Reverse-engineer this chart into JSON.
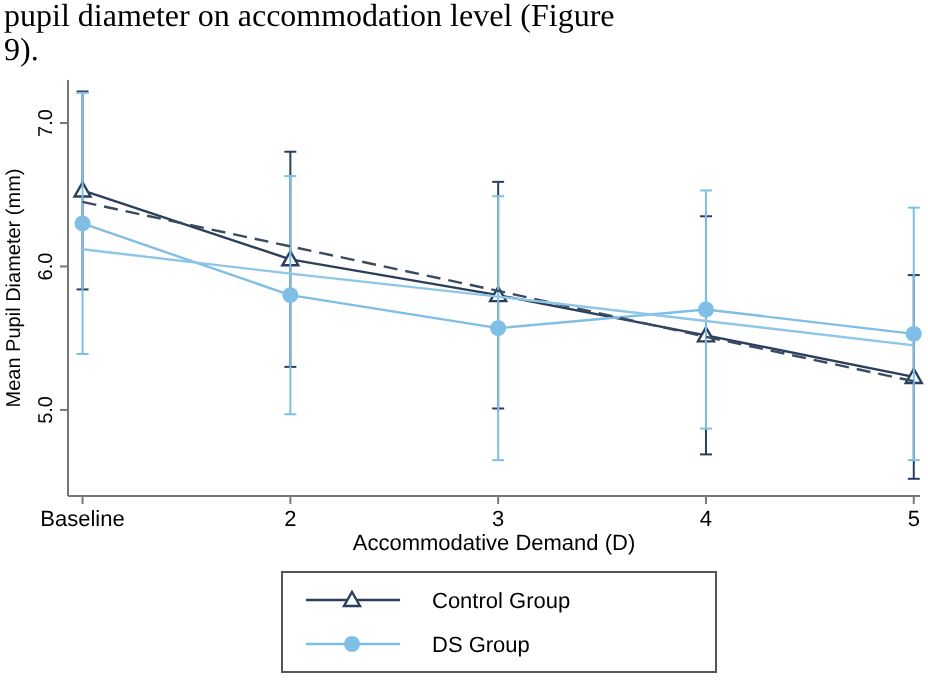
{
  "chart_data": {
    "type": "line",
    "xlabel": "Accommodative Demand (D)",
    "ylabel": "Mean Pupil Diameter (mm)",
    "annotations": [
      "pupil diameter on accommodation level (Figure",
      "9)."
    ],
    "x": [
      1,
      2,
      3,
      4,
      5
    ],
    "xlim": [
      0.93,
      5.03
    ],
    "xticks": [
      {
        "value": 1,
        "label": "Baseline"
      },
      2,
      3,
      4,
      5
    ],
    "ylim": [
      4.4,
      7.3
    ],
    "yticks": [
      {
        "value": 5,
        "label": "5.0"
      },
      {
        "value": 6,
        "label": "6.0"
      },
      {
        "value": 7,
        "label": "7.0"
      }
    ],
    "series": [
      {
        "name": "Control Group",
        "color": "#2b3f5c",
        "marker": "triangle",
        "values": [
          6.53,
          6.05,
          5.8,
          5.52,
          5.23
        ],
        "errors": [
          0.69,
          0.75,
          0.79,
          0.83,
          0.71
        ]
      },
      {
        "name": "DS Group",
        "color": "#7fbfe6",
        "marker": "circle",
        "values": [
          6.3,
          5.8,
          5.57,
          5.7,
          5.53
        ],
        "errors": [
          0.91,
          0.83,
          0.92,
          0.83,
          0.88
        ]
      },
      {
        "type": "line",
        "color": "#3a4a60",
        "line_style": "dashed",
        "marker": "none",
        "values": [
          6.45,
          6.14,
          5.83,
          5.51,
          5.2
        ]
      },
      {
        "type": "line",
        "color": "#8ec6e8",
        "marker": "none",
        "values": [
          6.12,
          5.95,
          5.79,
          5.62,
          5.45
        ]
      }
    ],
    "grid": false,
    "legend": "bottom"
  }
}
